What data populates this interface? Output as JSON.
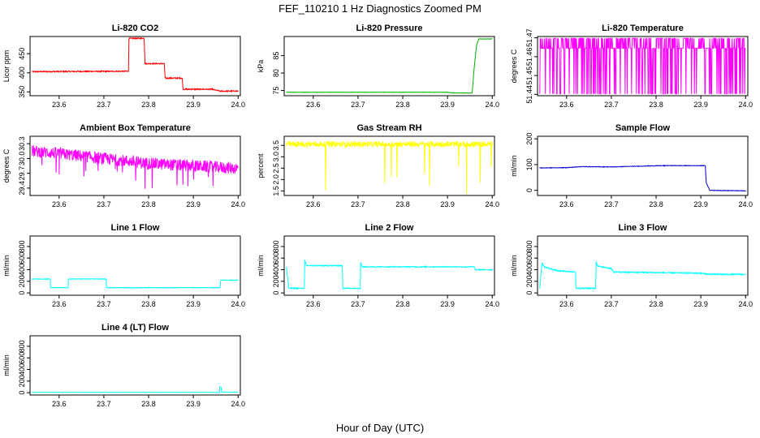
{
  "figure": {
    "title": "FEF_110210  1 Hz Diagnostics Zoomed PM",
    "xlabel": "Hour of Day (UTC)"
  },
  "chart_data": [
    {
      "type": "line",
      "title": "Li-820 CO2",
      "ylabel": "Licor ppm",
      "color": "#ff0000",
      "xlim": [
        23.535,
        24.005
      ],
      "ylim": [
        340,
        495
      ],
      "xticks": [
        "23.6",
        "23.7",
        "23.8",
        "23.9",
        "24.0"
      ],
      "yticks": [
        "350",
        "400",
        "450"
      ],
      "noise": 1.5,
      "series": [
        {
          "name": "",
          "x": [
            23.54,
            23.755,
            23.756,
            23.79,
            23.792,
            23.835,
            23.837,
            23.875,
            23.877,
            23.94,
            23.96,
            24.0
          ],
          "y": [
            403,
            404,
            490,
            490,
            424,
            424,
            386,
            386,
            357,
            357,
            352,
            352
          ]
        }
      ]
    },
    {
      "type": "line",
      "title": "Li-820 Pressure",
      "ylabel": "kPa",
      "color": "#00b000",
      "xlim": [
        23.535,
        24.005
      ],
      "ylim": [
        73.5,
        90.5
      ],
      "xticks": [
        "23.6",
        "23.7",
        "23.8",
        "23.9",
        "24.0"
      ],
      "yticks": [
        "75",
        "80",
        "85"
      ],
      "noise": 0.05,
      "series": [
        {
          "name": "",
          "x": [
            23.54,
            23.9,
            23.91,
            23.955,
            23.96,
            23.965,
            23.97,
            24.0
          ],
          "y": [
            74.5,
            74.5,
            74.3,
            74.3,
            82,
            88,
            89.8,
            89.8
          ]
        }
      ]
    },
    {
      "type": "line",
      "title": "Li-820 Temperature",
      "ylabel": "degrees C",
      "color": "#ff00ff",
      "xlim": [
        23.535,
        24.005
      ],
      "ylim": [
        51.4393,
        51.4707
      ],
      "xticks": [
        "23.6",
        "23.7",
        "23.8",
        "23.9",
        "24.0"
      ],
      "yticks": [
        "51.44",
        "51.45",
        "51.46",
        "51.47"
      ],
      "binary": true,
      "levels": [
        51.4403,
        51.4697
      ],
      "series": [
        {
          "name": "",
          "x": [
            23.54,
            24.0
          ],
          "y": [
            51.4403,
            51.4697
          ]
        }
      ]
    },
    {
      "type": "line",
      "title": "Ambient Box Temperature",
      "ylabel": "degrees C",
      "color": "#ff00ff",
      "xlim": [
        23.535,
        24.005
      ],
      "ylim": [
        29.25,
        30.45
      ],
      "xticks": [
        "23.6",
        "23.7",
        "23.8",
        "23.9",
        "24.0"
      ],
      "yticks": [
        "29.4",
        "29.7",
        "30.0",
        "30.3"
      ],
      "noise": 0.12,
      "series": [
        {
          "name": "",
          "x": [
            23.54,
            23.6,
            23.7,
            23.8,
            23.9,
            24.0
          ],
          "y": [
            30.15,
            30.1,
            30.0,
            29.9,
            29.85,
            29.8
          ]
        }
      ]
    },
    {
      "type": "line",
      "title": "Gas Stream RH",
      "ylabel": "percent",
      "color": "#ffff00",
      "xlim": [
        23.535,
        24.005
      ],
      "ylim": [
        1.3,
        3.9
      ],
      "xticks": [
        "23.6",
        "23.7",
        "23.8",
        "23.9",
        "24.0"
      ],
      "yticks": [
        "1.5",
        "2.0",
        "2.5",
        "3.0",
        "3.5"
      ],
      "noise": 0.12,
      "series": [
        {
          "name": "",
          "x": [
            23.54,
            24.0
          ],
          "y": [
            3.55,
            3.55
          ]
        }
      ]
    },
    {
      "type": "line",
      "title": "Sample Flow",
      "ylabel": "ml/min",
      "color": "#0000cc",
      "xlim": [
        23.535,
        24.005
      ],
      "ylim": [
        -20,
        210
      ],
      "xticks": [
        "23.6",
        "23.7",
        "23.8",
        "23.9",
        "24.0"
      ],
      "yticks": [
        "0",
        "100",
        "200"
      ],
      "noise": 1,
      "series": [
        {
          "name": "",
          "x": [
            23.54,
            23.6,
            23.63,
            23.7,
            23.79,
            23.82,
            23.91,
            23.912,
            23.92,
            24.0
          ],
          "y": [
            87,
            88,
            92,
            91,
            95,
            96,
            96,
            30,
            0,
            -2
          ]
        }
      ]
    },
    {
      "type": "line",
      "title": "Line 1 Flow",
      "ylabel": "ml/min",
      "color": "#00ffff",
      "xlim": [
        23.535,
        24.005
      ],
      "ylim": [
        -40,
        980
      ],
      "xticks": [
        "23.6",
        "23.7",
        "23.8",
        "23.9",
        "24.0"
      ],
      "yticks": [
        "0",
        "200",
        "400",
        "600",
        "800"
      ],
      "noise": 5,
      "series": [
        {
          "name": "",
          "x": [
            23.54,
            23.58,
            23.581,
            23.62,
            23.621,
            23.705,
            23.706,
            23.96,
            23.961,
            24.0
          ],
          "y": [
            240,
            240,
            90,
            90,
            240,
            240,
            90,
            90,
            220,
            220
          ]
        }
      ]
    },
    {
      "type": "line",
      "title": "Line 2 Flow",
      "ylabel": "ml/min",
      "color": "#00ffff",
      "xlim": [
        23.535,
        24.005
      ],
      "ylim": [
        -40,
        980
      ],
      "xticks": [
        "23.6",
        "23.7",
        "23.8",
        "23.9",
        "24.0"
      ],
      "yticks": [
        "0",
        "200",
        "400",
        "600",
        "800"
      ],
      "noise": 8,
      "series": [
        {
          "name": "",
          "x": [
            23.54,
            23.545,
            23.58,
            23.581,
            23.585,
            23.665,
            23.666,
            23.705,
            23.706,
            23.71,
            23.96,
            23.962,
            24.0
          ],
          "y": [
            450,
            80,
            80,
            560,
            470,
            470,
            80,
            80,
            520,
            450,
            450,
            400,
            400
          ]
        }
      ]
    },
    {
      "type": "line",
      "title": "Line 3 Flow",
      "ylabel": "ml/min",
      "color": "#00ffff",
      "xlim": [
        23.535,
        24.005
      ],
      "ylim": [
        -40,
        980
      ],
      "xticks": [
        "23.6",
        "23.7",
        "23.8",
        "23.9",
        "24.0"
      ],
      "yticks": [
        "0",
        "200",
        "400",
        "600",
        "800"
      ],
      "noise": 10,
      "series": [
        {
          "name": "",
          "x": [
            23.54,
            23.545,
            23.55,
            23.58,
            23.62,
            23.621,
            23.665,
            23.666,
            23.67,
            23.7,
            23.705,
            23.8,
            23.9,
            23.92,
            24.0
          ],
          "y": [
            80,
            520,
            450,
            380,
            360,
            80,
            80,
            540,
            460,
            420,
            360,
            350,
            340,
            320,
            320
          ]
        }
      ]
    },
    {
      "type": "line",
      "title": "Line 4 (LT) Flow",
      "ylabel": "ml/min",
      "color": "#00ffff",
      "xlim": [
        23.535,
        24.005
      ],
      "ylim": [
        -40,
        980
      ],
      "xticks": [
        "23.6",
        "23.7",
        "23.8",
        "23.9",
        "24.0"
      ],
      "yticks": [
        "0",
        "200",
        "400",
        "600",
        "800"
      ],
      "noise": 2,
      "series": [
        {
          "name": "",
          "x": [
            23.54,
            23.958,
            23.959,
            23.962,
            23.963,
            24.0
          ],
          "y": [
            5,
            5,
            100,
            100,
            10,
            8
          ]
        }
      ]
    }
  ]
}
